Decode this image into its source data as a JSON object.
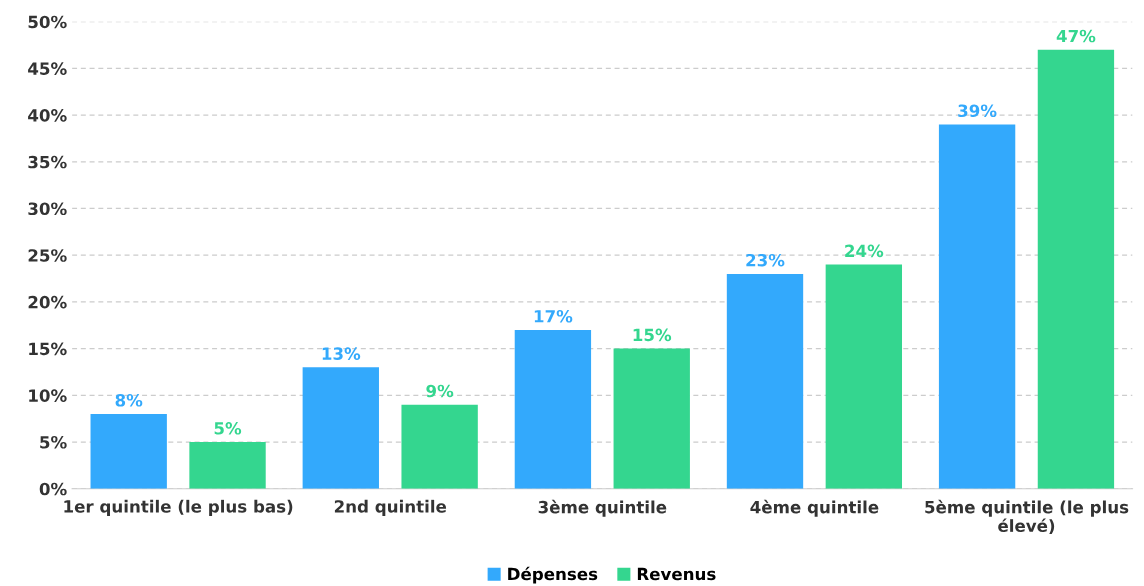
{
  "chart_data": {
    "type": "bar",
    "categories": [
      "1er quintile (le plus bas)",
      "2nd quintile",
      "3ème quintile",
      "4ème quintile",
      "5ème quintile (le plus élevé)"
    ],
    "series": [
      {
        "name": "Dépenses",
        "color": "#33a9fc",
        "values": [
          8,
          13,
          17,
          23,
          39
        ],
        "value_labels": [
          "8%",
          "13%",
          "17%",
          "23%",
          "39%"
        ]
      },
      {
        "name": "Revenus",
        "color": "#34d68f",
        "values": [
          5,
          9,
          15,
          24,
          47
        ],
        "value_labels": [
          "5%",
          "9%",
          "15%",
          "24%",
          "47%"
        ]
      }
    ],
    "ylim": [
      0,
      50
    ],
    "yticks": [
      {
        "value": 0,
        "label": "0%"
      },
      {
        "value": 5,
        "label": "5%"
      },
      {
        "value": 10,
        "label": "10%"
      },
      {
        "value": 15,
        "label": "15%"
      },
      {
        "value": 20,
        "label": "20%"
      },
      {
        "value": 25,
        "label": "25%"
      },
      {
        "value": 30,
        "label": "30%"
      },
      {
        "value": 35,
        "label": "35%"
      },
      {
        "value": 40,
        "label": "40%"
      },
      {
        "value": 45,
        "label": "45%"
      },
      {
        "value": 50,
        "label": "50%"
      }
    ],
    "grid": "y",
    "legend": "bottom"
  }
}
